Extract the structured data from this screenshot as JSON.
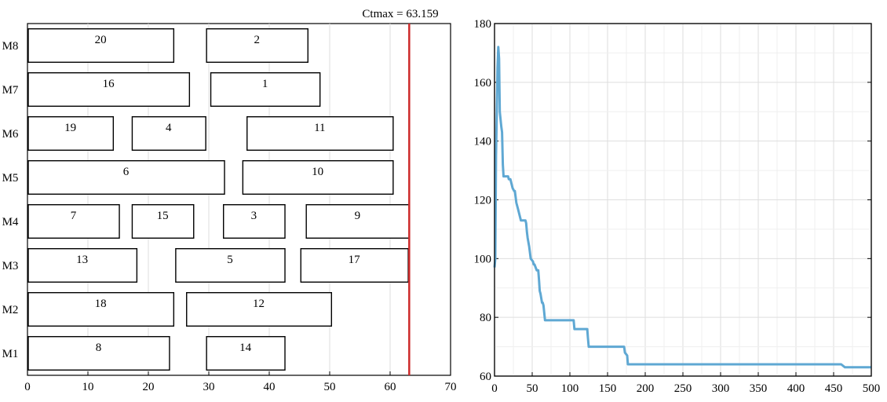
{
  "chart_data": [
    {
      "type": "gantt",
      "title": "",
      "annotation": "Ctmax = 63.159",
      "makespan": 63.159,
      "xlim": [
        0,
        70
      ],
      "xticks": [
        "0",
        "10",
        "20",
        "30",
        "40",
        "50",
        "60",
        "70"
      ],
      "machines": [
        "M1",
        "M2",
        "M3",
        "M4",
        "M5",
        "M6",
        "M7",
        "M8"
      ],
      "jobs": [
        {
          "machine": "M1",
          "label": "8",
          "start": 0,
          "end": 23.5
        },
        {
          "machine": "M1",
          "label": "14",
          "start": 29.5,
          "end": 42.6
        },
        {
          "machine": "M2",
          "label": "18",
          "start": 0,
          "end": 24.2
        },
        {
          "machine": "M2",
          "label": "12",
          "start": 26.2,
          "end": 50.3
        },
        {
          "machine": "M3",
          "label": "13",
          "start": 0,
          "end": 18.1
        },
        {
          "machine": "M3",
          "label": "5",
          "start": 24.4,
          "end": 42.6
        },
        {
          "machine": "M3",
          "label": "17",
          "start": 45.1,
          "end": 63.0
        },
        {
          "machine": "M4",
          "label": "7",
          "start": 0,
          "end": 15.2
        },
        {
          "machine": "M4",
          "label": "15",
          "start": 17.2,
          "end": 27.5
        },
        {
          "machine": "M4",
          "label": "3",
          "start": 32.3,
          "end": 42.6
        },
        {
          "machine": "M4",
          "label": "9",
          "start": 46.0,
          "end": 63.2
        },
        {
          "machine": "M5",
          "label": "6",
          "start": 0,
          "end": 32.6
        },
        {
          "machine": "M5",
          "label": "10",
          "start": 35.5,
          "end": 60.5
        },
        {
          "machine": "M6",
          "label": "19",
          "start": 0,
          "end": 14.2
        },
        {
          "machine": "M6",
          "label": "4",
          "start": 17.2,
          "end": 29.5
        },
        {
          "machine": "M6",
          "label": "11",
          "start": 36.2,
          "end": 60.5
        },
        {
          "machine": "M7",
          "label": "16",
          "start": 0,
          "end": 26.8
        },
        {
          "machine": "M7",
          "label": "1",
          "start": 30.2,
          "end": 48.4
        },
        {
          "machine": "M8",
          "label": "20",
          "start": 0,
          "end": 24.2
        },
        {
          "machine": "M8",
          "label": "2",
          "start": 29.5,
          "end": 46.4
        }
      ],
      "colors": {
        "makespan_line": "#cc2a2a",
        "bar_fill": "#ffffff",
        "bar_stroke": "#000000"
      }
    },
    {
      "type": "line",
      "title": "",
      "xlabel": "",
      "ylabel": "",
      "xlim": [
        0,
        500
      ],
      "ylim": [
        60,
        180
      ],
      "xticks": [
        "0",
        "50",
        "100",
        "150",
        "200",
        "250",
        "300",
        "350",
        "400",
        "450",
        "500"
      ],
      "yticks": [
        "60",
        "80",
        "100",
        "120",
        "140",
        "160",
        "180"
      ],
      "grid": true,
      "series": [
        {
          "color": "#5fa8d3",
          "x": [
            0,
            1,
            2,
            3,
            4,
            5,
            6,
            7,
            9,
            10,
            11,
            12,
            18,
            19,
            21,
            24,
            26,
            27,
            29,
            31,
            35,
            40,
            41,
            42,
            43,
            44,
            46,
            48,
            51,
            52,
            53,
            56,
            58,
            59,
            60,
            61,
            63,
            64,
            65,
            67,
            68,
            105,
            106,
            123,
            124,
            125,
            172,
            173,
            176,
            177,
            178,
            180,
            460,
            465,
            500
          ],
          "y": [
            97,
            100,
            135,
            150,
            165,
            172,
            168,
            150,
            145,
            143,
            132,
            128,
            128,
            127,
            127,
            124,
            123,
            123,
            119,
            117,
            113,
            113,
            113,
            112,
            109,
            107,
            104,
            100,
            99,
            98,
            98,
            96,
            96,
            93,
            89,
            88,
            85,
            85,
            84,
            79,
            79,
            79,
            76,
            76,
            73,
            70,
            70,
            68,
            67,
            64,
            64,
            64,
            64,
            63,
            63
          ]
        }
      ]
    }
  ]
}
